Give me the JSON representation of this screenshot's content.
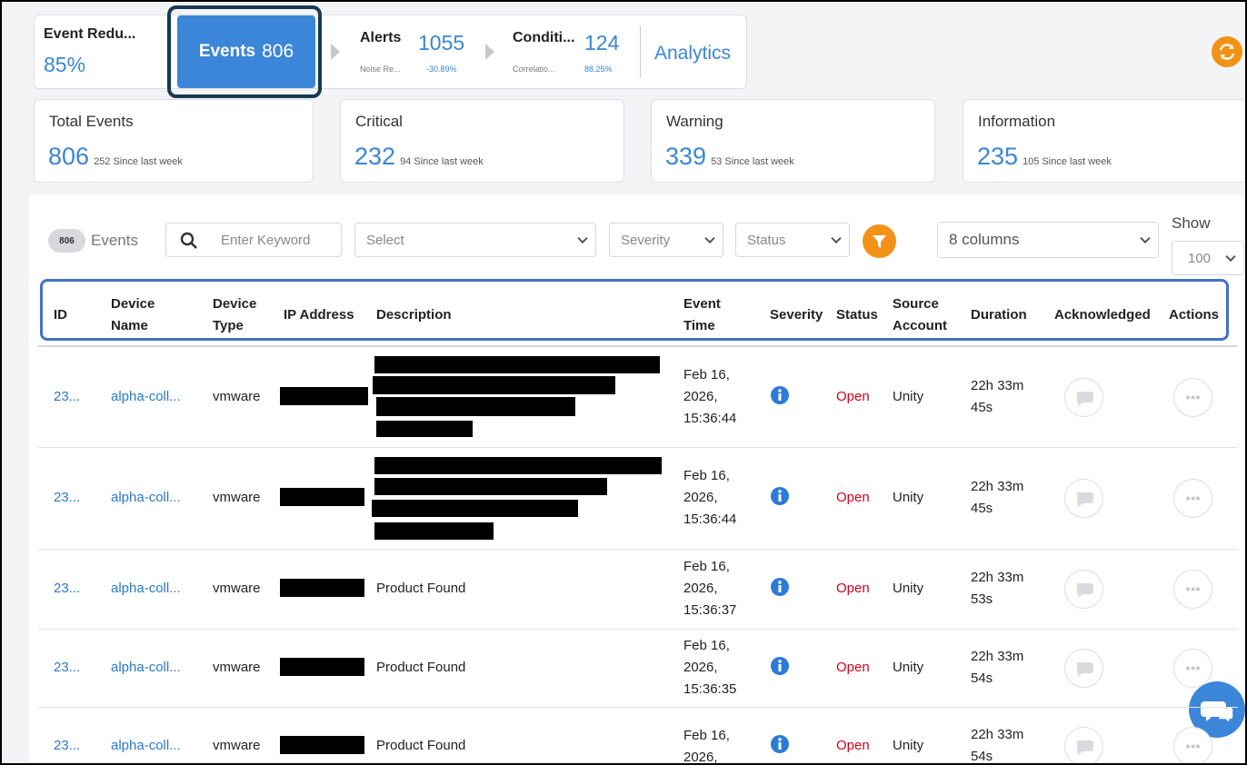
{
  "tabs": [
    {
      "label": "Event Redu...",
      "value": "85%"
    },
    {
      "label": "Events",
      "value": "806"
    },
    {
      "label": "Alerts",
      "value": "1055",
      "sub_label": "Noise Re...",
      "sub_value": "-30.89%"
    },
    {
      "label": "Conditi...",
      "value": "124",
      "sub_label": "Correlatio...",
      "sub_value": "88.25%"
    },
    {
      "label": "Analytics"
    }
  ],
  "stats": [
    {
      "label": "Total Events",
      "value": "806",
      "note": "252 Since last week"
    },
    {
      "label": "Critical",
      "value": "232",
      "note": "94 Since last week"
    },
    {
      "label": "Warning",
      "value": "339",
      "note": "53 Since last week"
    },
    {
      "label": "Information",
      "value": "235",
      "note": "105 Since last week"
    }
  ],
  "toolbar": {
    "count": "806",
    "label": "Events",
    "search_placeholder": "Enter Keyword",
    "select": "Select",
    "severity": "Severity",
    "status": "Status",
    "columns": "8 columns",
    "show_label": "Show",
    "show_value": "100"
  },
  "table": {
    "columns": [
      "ID",
      "Device Name",
      "Device Type",
      "IP Address",
      "Description",
      "Event Time",
      "Severity",
      "Status",
      "Source Account",
      "Duration",
      "Acknowledged",
      "Actions"
    ],
    "rows": [
      {
        "id": "23...",
        "device_name": "alpha-coll...",
        "device_type": "vmware",
        "event_time": [
          "Feb 16,",
          "2026,",
          "15:36:44"
        ],
        "status": "Open",
        "source_account": "Unity",
        "duration": [
          "22h 33m",
          "45s"
        ]
      },
      {
        "id": "23...",
        "device_name": "alpha-coll...",
        "device_type": "vmware",
        "event_time": [
          "Feb 16,",
          "2026,",
          "15:36:44"
        ],
        "status": "Open",
        "source_account": "Unity",
        "duration": [
          "22h 33m",
          "45s"
        ]
      },
      {
        "id": "23...",
        "device_name": "alpha-coll...",
        "device_type": "vmware",
        "description": "Product Found",
        "event_time": [
          "Feb 16,",
          "2026,",
          "15:36:37"
        ],
        "status": "Open",
        "source_account": "Unity",
        "duration": [
          "22h 33m",
          "53s"
        ]
      },
      {
        "id": "23...",
        "device_name": "alpha-coll...",
        "device_type": "vmware",
        "description": "Product Found",
        "event_time": [
          "Feb 16,",
          "2026,",
          "15:36:35"
        ],
        "status": "Open",
        "source_account": "Unity",
        "duration": [
          "22h 33m",
          "54s"
        ]
      },
      {
        "id": "23...",
        "device_name": "alpha-coll...",
        "device_type": "vmware",
        "description": "Product Found",
        "event_time": [
          "Feb 16,",
          "2026,"
        ],
        "status": "Open",
        "source_account": "Unity",
        "duration": [
          "22h 33m",
          "54s"
        ]
      }
    ]
  }
}
